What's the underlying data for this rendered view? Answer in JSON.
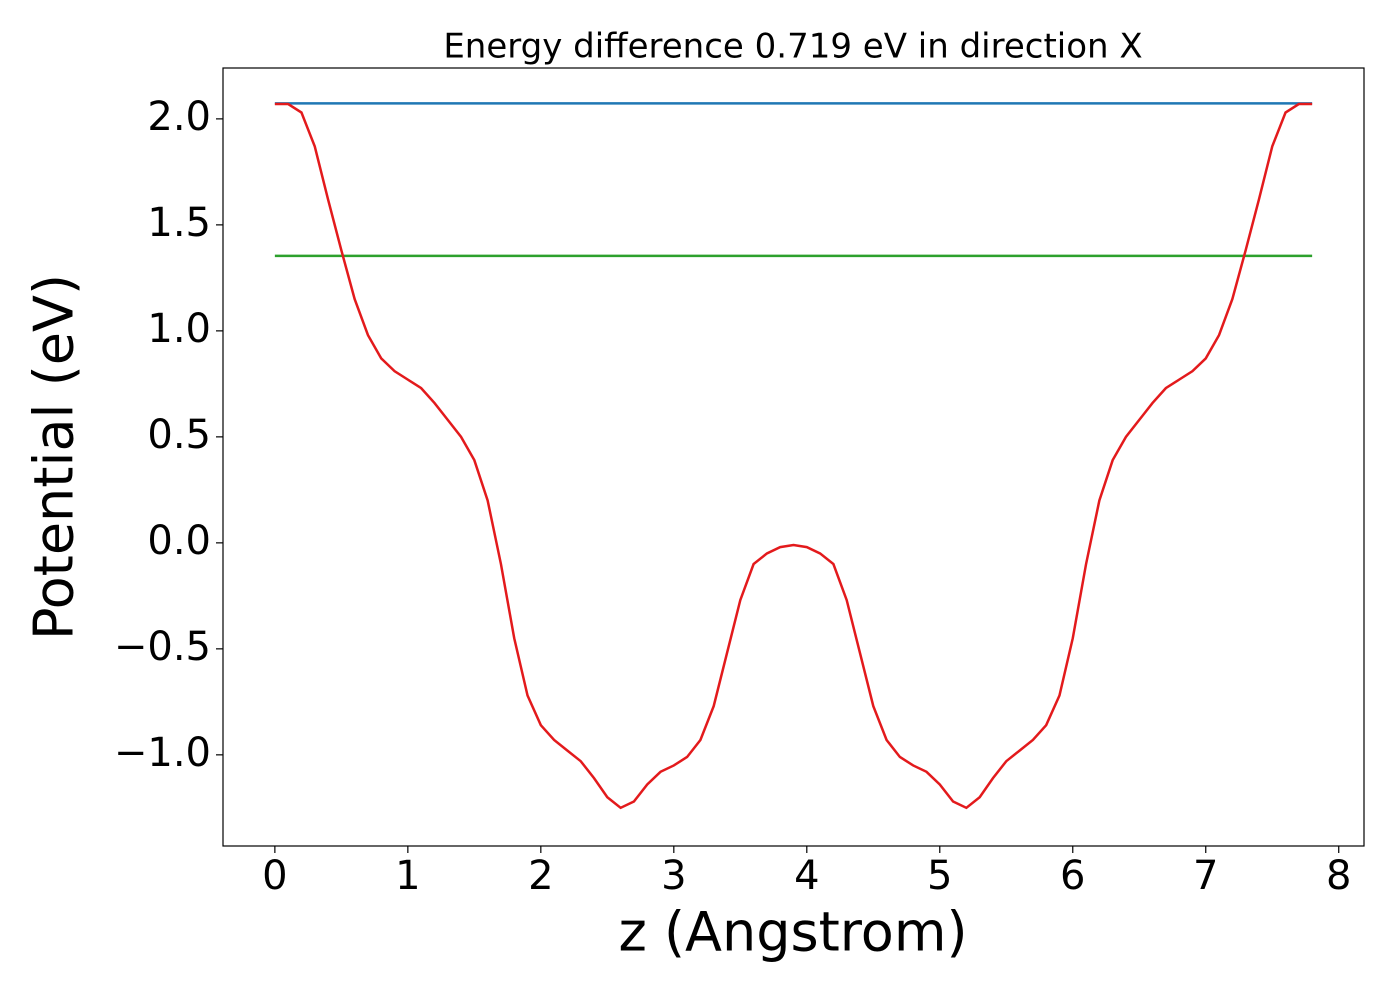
{
  "chart_data": {
    "type": "line",
    "title": "Energy difference 0.719 eV in direction X",
    "x_label": "z (Angstrom)",
    "y_label": "Potential (eV)",
    "xlim": [
      -0.39,
      8.19
    ],
    "ylim": [
      -1.43,
      2.24
    ],
    "xticks": [
      0,
      1,
      2,
      3,
      4,
      5,
      6,
      7,
      8
    ],
    "yticks": [
      {
        "value": -1,
        "label": "−1.0"
      },
      {
        "value": -0.5,
        "label": "−0.5"
      },
      {
        "value": 0,
        "label": "0.0"
      },
      0.5,
      {
        "value": 1,
        "label": "1.0"
      },
      1.5,
      {
        "value": 2,
        "label": "2.0"
      }
    ],
    "series": [
      {
        "color": "#1f77b4",
        "x": [
          0,
          7.8
        ],
        "values": [
          2.073,
          2.073
        ]
      },
      {
        "color": "#2ca02c",
        "x": [
          0,
          7.8
        ],
        "values": [
          1.354,
          1.354
        ]
      },
      {
        "color": "#e31a1c",
        "x": [
          0,
          0.1,
          0.2,
          0.3,
          0.4,
          0.5,
          0.6,
          0.7,
          0.8,
          0.9,
          1.0,
          1.1,
          1.2,
          1.3,
          1.4,
          1.5,
          1.6,
          1.7,
          1.8,
          1.9,
          2.0,
          2.1,
          2.2,
          2.3,
          2.4,
          2.5,
          2.6,
          2.7,
          2.8,
          2.9,
          3.0,
          3.1,
          3.2,
          3.3,
          3.4,
          3.5,
          3.6,
          3.7,
          3.8,
          3.9,
          4.0,
          4.1,
          4.2,
          4.3,
          4.4,
          4.5,
          4.6,
          4.7,
          4.8,
          4.9,
          5.0,
          5.1,
          5.2,
          5.3,
          5.4,
          5.5,
          5.6,
          5.7,
          5.8,
          5.9,
          6.0,
          6.1,
          6.2,
          6.3,
          6.4,
          6.5,
          6.6,
          6.7,
          6.8,
          6.9,
          7.0,
          7.1,
          7.2,
          7.3,
          7.4,
          7.5,
          7.6,
          7.7,
          7.8
        ],
        "values": [
          2.07,
          2.07,
          2.03,
          1.87,
          1.62,
          1.38,
          1.15,
          0.98,
          0.87,
          0.81,
          0.77,
          0.73,
          0.66,
          0.58,
          0.5,
          0.39,
          0.2,
          -0.1,
          -0.45,
          -0.72,
          -0.86,
          -0.93,
          -0.98,
          -1.03,
          -1.11,
          -1.2,
          -1.25,
          -1.22,
          -1.14,
          -1.08,
          -1.05,
          -1.01,
          -0.93,
          -0.77,
          -0.52,
          -0.27,
          -0.1,
          -0.05,
          -0.02,
          -0.01,
          -0.02,
          -0.05,
          -0.1,
          -0.27,
          -0.52,
          -0.77,
          -0.93,
          -1.01,
          -1.05,
          -1.08,
          -1.14,
          -1.22,
          -1.25,
          -1.2,
          -1.11,
          -1.03,
          -0.98,
          -0.93,
          -0.86,
          -0.72,
          -0.45,
          -0.1,
          0.2,
          0.39,
          0.5,
          0.58,
          0.66,
          0.73,
          0.77,
          0.81,
          0.87,
          0.98,
          1.15,
          1.38,
          1.62,
          1.87,
          2.03,
          2.07,
          2.07
        ]
      }
    ]
  }
}
